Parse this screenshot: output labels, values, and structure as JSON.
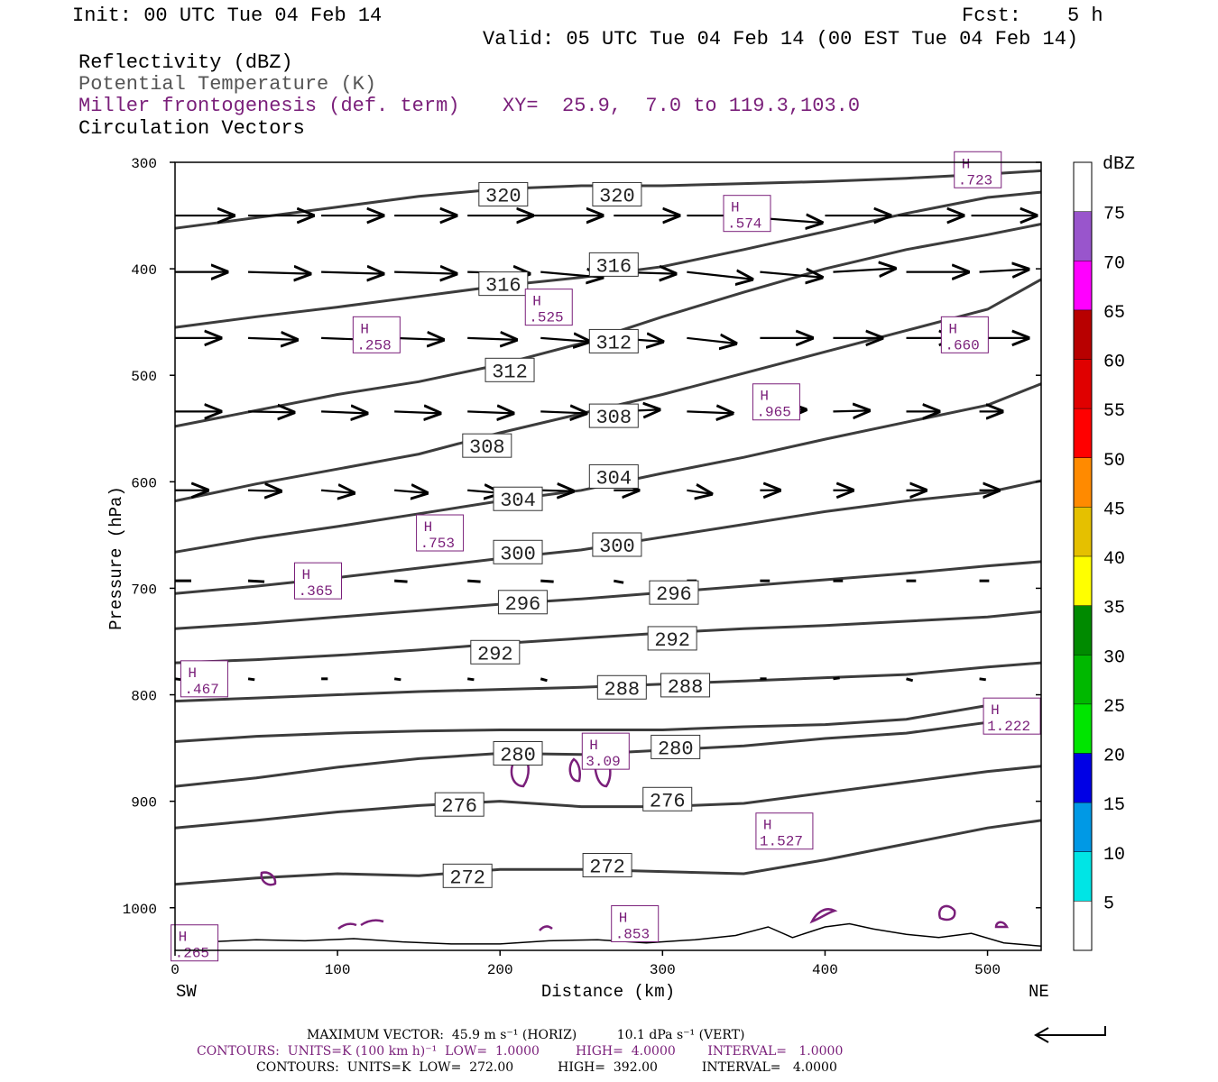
{
  "header": {
    "init": "Init: 00 UTC Tue 04 Feb 14",
    "fcst_label": "Fcst:",
    "fcst_value": "5 h",
    "valid": "Valid: 05 UTC Tue 04 Feb 14 (00 EST Tue 04 Feb 14)",
    "field1": "Reflectivity (dBZ)",
    "field2": "Potential Temperature (K)",
    "field3": "Miller frontogenesis (def. term)",
    "xy": "XY=  25.9,  7.0 to 119.3,103.0",
    "field4": "Circulation Vectors"
  },
  "footer": {
    "max_vector": "MAXIMUM VECTOR:  45.9 m s⁻¹ (HORIZ)          10.1 dPa s⁻¹ (VERT)",
    "contours1": "CONTOURS:  UNITS=K (100 km h)⁻¹  LOW=  1.0000         HIGH=  4.0000        INTERVAL=   1.0000",
    "contours2": "CONTOURS:  UNITS=K  LOW=  272.00           HIGH=  392.00           INTERVAL=   4.0000"
  },
  "colors": {
    "theta": "#3c3c3c",
    "fronto": "#7a1f7a",
    "vectors": "#000000"
  },
  "chart_data": {
    "type": "cross-section",
    "xlabel": "Distance (km)",
    "ylabel": "Pressure (hPa)",
    "x_ticks": [
      0,
      100,
      200,
      300,
      400,
      500
    ],
    "y_ticks": [
      300,
      400,
      500,
      600,
      700,
      800,
      900,
      1000
    ],
    "xlim": [
      0,
      533
    ],
    "ylim": [
      300,
      1040
    ],
    "left_end": "SW",
    "right_end": "NE",
    "colorbar": {
      "units": "dBZ",
      "levels": [
        "5",
        "10",
        "15",
        "20",
        "25",
        "30",
        "35",
        "40",
        "45",
        "50",
        "55",
        "60",
        "65",
        "70",
        "75"
      ],
      "colors": [
        "#ffffff",
        "#00e5e5",
        "#0099e5",
        "#0000e5",
        "#00e500",
        "#00b800",
        "#008a00",
        "#ffff00",
        "#e5c000",
        "#ff8a00",
        "#ff0000",
        "#e00000",
        "#b80000",
        "#ff00ff",
        "#9955cc",
        "#ffffff"
      ]
    },
    "theta_lines": [
      {
        "value": 320,
        "points": [
          [
            0,
            362
          ],
          [
            50,
            352
          ],
          [
            100,
            342
          ],
          [
            150,
            332
          ],
          [
            200,
            325
          ],
          [
            250,
            322
          ],
          [
            300,
            322
          ],
          [
            350,
            320
          ],
          [
            400,
            318
          ],
          [
            450,
            315
          ],
          [
            500,
            311
          ],
          [
            533,
            308
          ]
        ]
      },
      {
        "value": 316,
        "points": [
          [
            0,
            455
          ],
          [
            50,
            445
          ],
          [
            100,
            436
          ],
          [
            150,
            426
          ],
          [
            200,
            416
          ],
          [
            250,
            408
          ],
          [
            300,
            398
          ],
          [
            350,
            382
          ],
          [
            400,
            365
          ],
          [
            450,
            348
          ],
          [
            500,
            333
          ],
          [
            533,
            328
          ]
        ]
      },
      {
        "value": 312,
        "points": [
          [
            0,
            548
          ],
          [
            50,
            533
          ],
          [
            100,
            518
          ],
          [
            150,
            506
          ],
          [
            200,
            490
          ],
          [
            250,
            470
          ],
          [
            300,
            445
          ],
          [
            350,
            422
          ],
          [
            400,
            400
          ],
          [
            450,
            382
          ],
          [
            500,
            368
          ],
          [
            533,
            358
          ]
        ]
      },
      {
        "value": 308,
        "points": [
          [
            0,
            618
          ],
          [
            50,
            602
          ],
          [
            100,
            588
          ],
          [
            150,
            574
          ],
          [
            200,
            554
          ],
          [
            250,
            536
          ],
          [
            300,
            518
          ],
          [
            350,
            498
          ],
          [
            400,
            478
          ],
          [
            450,
            458
          ],
          [
            500,
            438
          ],
          [
            533,
            410
          ]
        ]
      },
      {
        "value": 304,
        "points": [
          [
            0,
            666
          ],
          [
            50,
            653
          ],
          [
            100,
            642
          ],
          [
            150,
            630
          ],
          [
            200,
            618
          ],
          [
            250,
            608
          ],
          [
            300,
            592
          ],
          [
            350,
            577
          ],
          [
            400,
            560
          ],
          [
            450,
            544
          ],
          [
            500,
            528
          ],
          [
            533,
            508
          ]
        ]
      },
      {
        "value": 300,
        "points": [
          [
            0,
            705
          ],
          [
            50,
            698
          ],
          [
            100,
            690
          ],
          [
            150,
            681
          ],
          [
            200,
            672
          ],
          [
            250,
            664
          ],
          [
            300,
            652
          ],
          [
            350,
            640
          ],
          [
            400,
            628
          ],
          [
            450,
            618
          ],
          [
            500,
            610
          ],
          [
            533,
            599
          ]
        ]
      },
      {
        "value": 296,
        "points": [
          [
            0,
            738
          ],
          [
            50,
            733
          ],
          [
            100,
            727
          ],
          [
            150,
            721
          ],
          [
            200,
            715
          ],
          [
            250,
            710
          ],
          [
            300,
            704
          ],
          [
            350,
            698
          ],
          [
            400,
            692
          ],
          [
            450,
            686
          ],
          [
            500,
            679
          ],
          [
            533,
            675
          ]
        ]
      },
      {
        "value": 292,
        "points": [
          [
            0,
            770
          ],
          [
            50,
            767
          ],
          [
            100,
            763
          ],
          [
            150,
            758
          ],
          [
            200,
            752
          ],
          [
            250,
            747
          ],
          [
            300,
            742
          ],
          [
            350,
            738
          ],
          [
            400,
            735
          ],
          [
            450,
            731
          ],
          [
            500,
            727
          ],
          [
            533,
            722
          ]
        ]
      },
      {
        "value": 288,
        "points": [
          [
            0,
            806
          ],
          [
            50,
            803
          ],
          [
            100,
            800
          ],
          [
            150,
            797
          ],
          [
            200,
            795
          ],
          [
            250,
            793
          ],
          [
            300,
            790
          ],
          [
            350,
            787
          ],
          [
            400,
            784
          ],
          [
            450,
            781
          ],
          [
            500,
            774
          ],
          [
            533,
            770
          ]
        ]
      },
      {
        "value": 284,
        "points": [
          [
            0,
            844
          ],
          [
            50,
            839
          ],
          [
            100,
            836
          ],
          [
            150,
            834
          ],
          [
            200,
            833
          ],
          [
            250,
            833
          ],
          [
            300,
            833
          ],
          [
            350,
            830
          ],
          [
            400,
            828
          ],
          [
            450,
            823
          ],
          [
            500,
            810
          ],
          [
            533,
            806
          ]
        ]
      },
      {
        "value": 280,
        "points": [
          [
            0,
            886
          ],
          [
            50,
            878
          ],
          [
            100,
            868
          ],
          [
            150,
            860
          ],
          [
            200,
            855
          ],
          [
            250,
            856
          ],
          [
            300,
            852
          ],
          [
            350,
            848
          ],
          [
            400,
            841
          ],
          [
            450,
            836
          ],
          [
            500,
            826
          ],
          [
            533,
            818
          ]
        ]
      },
      {
        "value": 276,
        "points": [
          [
            0,
            925
          ],
          [
            50,
            918
          ],
          [
            100,
            910
          ],
          [
            150,
            904
          ],
          [
            200,
            900
          ],
          [
            250,
            905
          ],
          [
            300,
            905
          ],
          [
            350,
            902
          ],
          [
            400,
            892
          ],
          [
            450,
            882
          ],
          [
            500,
            872
          ],
          [
            533,
            867
          ]
        ]
      },
      {
        "value": 272,
        "points": [
          [
            0,
            978
          ],
          [
            50,
            972
          ],
          [
            100,
            968
          ],
          [
            150,
            970
          ],
          [
            200,
            964
          ],
          [
            250,
            964
          ],
          [
            300,
            966
          ],
          [
            350,
            968
          ],
          [
            400,
            955
          ],
          [
            450,
            940
          ],
          [
            500,
            925
          ],
          [
            533,
            918
          ]
        ]
      }
    ],
    "theta_labels": [
      {
        "text": "320",
        "x": 202,
        "p": 330
      },
      {
        "text": "320",
        "x": 272,
        "p": 330
      },
      {
        "text": "316",
        "x": 202,
        "p": 414
      },
      {
        "text": "316",
        "x": 270,
        "p": 396
      },
      {
        "text": "312",
        "x": 206,
        "p": 495
      },
      {
        "text": "312",
        "x": 270,
        "p": 468
      },
      {
        "text": "308",
        "x": 192,
        "p": 566
      },
      {
        "text": "308",
        "x": 270,
        "p": 538
      },
      {
        "text": "304",
        "x": 211,
        "p": 616
      },
      {
        "text": "304",
        "x": 270,
        "p": 595
      },
      {
        "text": "300",
        "x": 211,
        "p": 666
      },
      {
        "text": "300",
        "x": 272,
        "p": 659
      },
      {
        "text": "296",
        "x": 214,
        "p": 713
      },
      {
        "text": "296",
        "x": 307,
        "p": 704
      },
      {
        "text": "292",
        "x": 197,
        "p": 760
      },
      {
        "text": "292",
        "x": 306,
        "p": 747
      },
      {
        "text": "288",
        "x": 275,
        "p": 793
      },
      {
        "text": "288",
        "x": 314,
        "p": 791
      },
      {
        "text": "280",
        "x": 211,
        "p": 855
      },
      {
        "text": "280",
        "x": 308,
        "p": 849
      },
      {
        "text": "276",
        "x": 175,
        "p": 903
      },
      {
        "text": "276",
        "x": 303,
        "p": 898
      },
      {
        "text": "272",
        "x": 180,
        "p": 970
      },
      {
        "text": "272",
        "x": 266,
        "p": 960
      }
    ],
    "fronto_maxima": [
      {
        "label": "H",
        "value": ".723",
        "x": 494,
        "p": 307
      },
      {
        "label": "H",
        "value": ".574",
        "x": 352,
        "p": 348
      },
      {
        "label": "H",
        "value": ".525",
        "x": 230,
        "p": 436
      },
      {
        "label": "H",
        "value": ".258",
        "x": 124,
        "p": 462
      },
      {
        "label": "H",
        "value": ".660",
        "x": 486,
        "p": 462
      },
      {
        "label": "H",
        "value": ".965",
        "x": 370,
        "p": 525
      },
      {
        "label": "H",
        "value": ".753",
        "x": 163,
        "p": 648
      },
      {
        "label": "H",
        "value": ".365",
        "x": 88,
        "p": 693
      },
      {
        "label": "H",
        "value": ".467",
        "x": 18,
        "p": 785
      },
      {
        "label": "H",
        "value": "1.222",
        "x": 515,
        "p": 820
      },
      {
        "label": "H",
        "value": "3.09",
        "x": 265,
        "p": 853
      },
      {
        "label": "H",
        "value": "1.527",
        "x": 375,
        "p": 928
      },
      {
        "label": "H",
        "value": ".853",
        "x": 283,
        "p": 1015
      },
      {
        "label": "H",
        "value": ".265",
        "x": 12,
        "p": 1033
      }
    ],
    "vectors": [
      {
        "p": 350,
        "x": [
          0,
          45,
          90,
          135,
          180,
          225,
          270,
          315,
          360,
          405,
          450,
          495
        ],
        "u": [
          36,
          40,
          38,
          38,
          40,
          40,
          40,
          40,
          52,
          40,
          40,
          40
        ],
        "w": [
          0,
          -1,
          0,
          0,
          0,
          0,
          -1,
          0,
          6,
          3,
          0,
          -2
        ],
        "starts": [
          0,
          45,
          90,
          135,
          180,
          220,
          270,
          315,
          340,
          400,
          445,
          490
        ],
        "dx": [
          36,
          40,
          38,
          38,
          40,
          43,
          40,
          40,
          58,
          40,
          40,
          40
        ],
        "dp": [
          0,
          0,
          0,
          0,
          0,
          0,
          0,
          0,
          8,
          0,
          0,
          0
        ]
      },
      {
        "p": 403,
        "x": [
          0,
          45,
          90,
          135,
          180,
          225,
          270,
          315,
          360,
          405,
          450,
          495
        ],
        "dx": [
          32,
          38,
          38,
          38,
          38,
          38,
          38,
          40,
          38,
          38,
          38,
          30
        ],
        "dp": [
          0,
          2,
          2,
          2,
          2,
          6,
          2,
          8,
          6,
          -4,
          0,
          -3
        ]
      },
      {
        "p": 465,
        "x": [
          0,
          45,
          90,
          135,
          180,
          225,
          270,
          315,
          360,
          405,
          450,
          495
        ],
        "dx": [
          28,
          30,
          30,
          30,
          30,
          30,
          30,
          30,
          32,
          30,
          30,
          30
        ],
        "dp": [
          0,
          2,
          2,
          2,
          2,
          4,
          4,
          6,
          0,
          0,
          0,
          0
        ]
      },
      {
        "p": 534,
        "x": [
          0,
          45,
          90,
          135,
          180,
          225,
          270,
          315,
          360,
          405,
          450,
          495
        ],
        "dx": [
          28,
          28,
          28,
          28,
          28,
          28,
          28,
          28,
          28,
          22,
          20,
          14
        ],
        "dp": [
          0,
          1,
          2,
          2,
          2,
          2,
          -2,
          2,
          -2,
          -1,
          0,
          0
        ]
      },
      {
        "p": 608,
        "x": [
          0,
          45,
          90,
          135,
          180,
          225,
          270,
          315,
          360,
          405,
          450,
          495
        ],
        "dx": [
          20,
          20,
          20,
          20,
          20,
          20,
          15,
          15,
          12,
          12,
          12,
          12
        ],
        "dp": [
          0,
          1,
          3,
          3,
          3,
          1,
          0,
          4,
          0,
          0,
          0,
          0
        ]
      }
    ],
    "short_vectors": [
      {
        "p": 693,
        "x": [
          0,
          45,
          90,
          135,
          180,
          225,
          270,
          315,
          360,
          405,
          450,
          495
        ],
        "dx": [
          10,
          10,
          10,
          8,
          8,
          8,
          6,
          6,
          6,
          6,
          6,
          6
        ],
        "dp": [
          0,
          1,
          1,
          1,
          1,
          1,
          2,
          0,
          0,
          0,
          0,
          0
        ]
      },
      {
        "p": 785,
        "x": [
          0,
          45,
          90,
          135,
          180,
          225,
          270,
          315,
          360,
          405,
          450,
          495
        ],
        "dx": [
          4,
          4,
          4,
          4,
          4,
          4,
          4,
          4,
          4,
          4,
          4,
          4
        ],
        "dp": [
          1,
          1,
          0,
          1,
          1,
          2,
          0,
          0,
          0,
          -1,
          2,
          1
        ]
      }
    ]
  }
}
